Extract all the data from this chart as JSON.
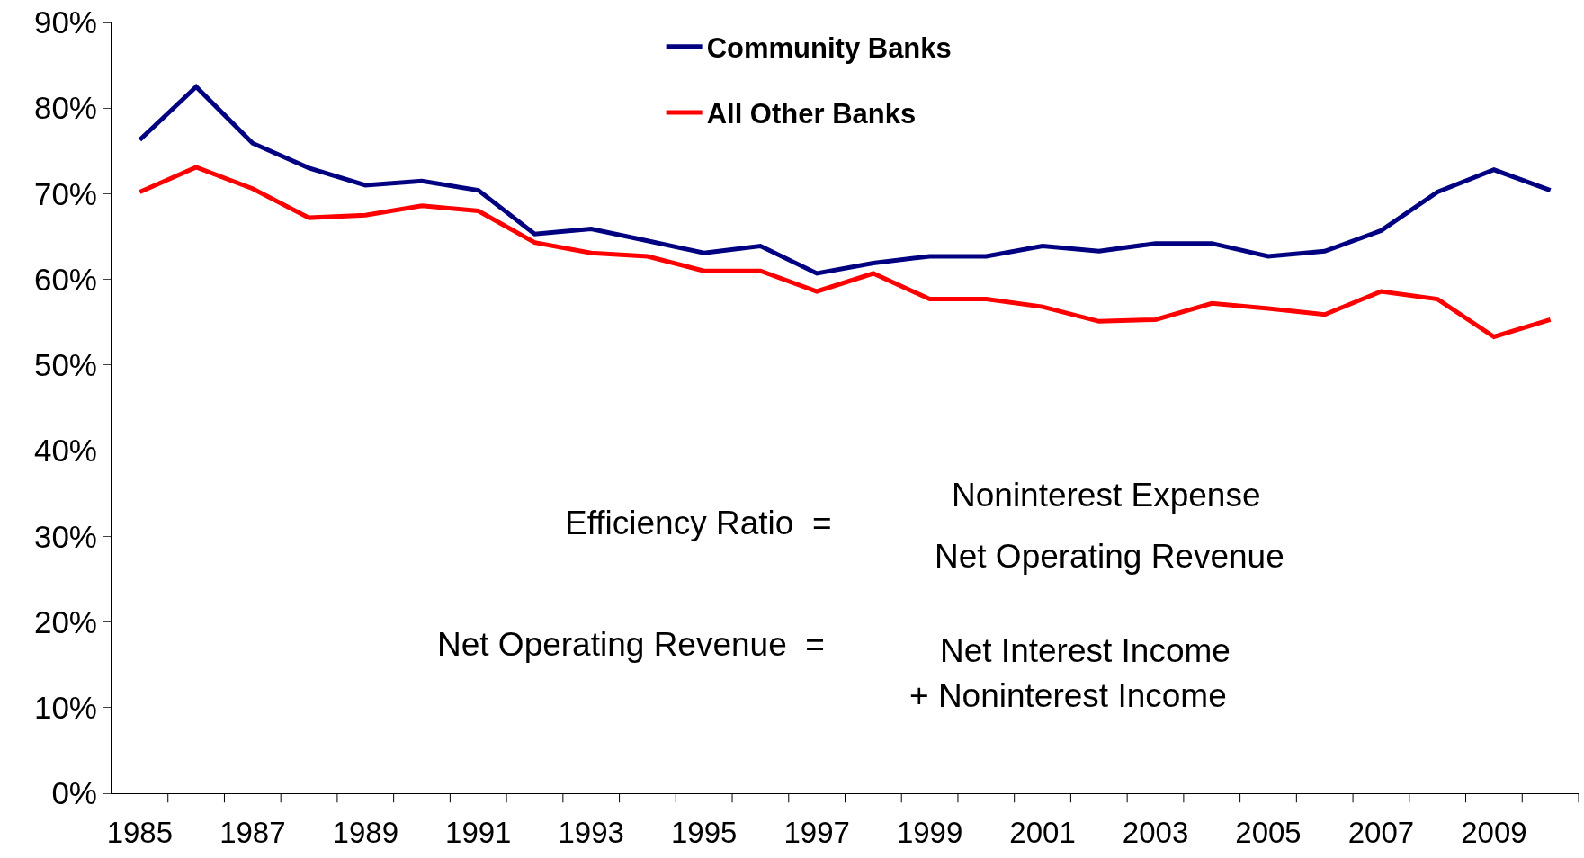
{
  "chart_data": {
    "type": "line",
    "categories": [
      "1985",
      null,
      "1987",
      null,
      "1989",
      null,
      "1991",
      null,
      "1993",
      null,
      "1995",
      null,
      "1997",
      null,
      "1999",
      null,
      "2001",
      null,
      "2003",
      null,
      "2005",
      null,
      "2007",
      null,
      "2009",
      null
    ],
    "series": [
      {
        "name": "Community Banks",
        "color": "#000080",
        "values": [
          76.3,
          82.5,
          75.9,
          73.0,
          71.0,
          71.5,
          70.4,
          65.3,
          65.9,
          64.5,
          63.1,
          63.9,
          60.7,
          61.9,
          62.7,
          62.7,
          63.9,
          63.3,
          64.2,
          64.2,
          62.7,
          63.3,
          65.7,
          70.2,
          72.8,
          70.4
        ]
      },
      {
        "name": "All Other Banks",
        "color": "#ff0000",
        "values": [
          70.2,
          73.1,
          70.6,
          67.2,
          67.5,
          68.6,
          68.0,
          64.3,
          63.1,
          62.7,
          61.0,
          61.0,
          58.6,
          60.7,
          57.7,
          57.7,
          56.8,
          55.1,
          55.3,
          57.2,
          56.6,
          55.9,
          58.6,
          57.7,
          53.3,
          55.3
        ]
      }
    ],
    "ylim": [
      0,
      90
    ],
    "yticks": [
      {
        "value": 0,
        "label": "0%"
      },
      {
        "value": 10,
        "label": "10%"
      },
      {
        "value": 20,
        "label": "20%"
      },
      {
        "value": 30,
        "label": "30%"
      },
      {
        "value": 40,
        "label": "40%"
      },
      {
        "value": 50,
        "label": "50%"
      },
      {
        "value": 60,
        "label": "60%"
      },
      {
        "value": 70,
        "label": "70%"
      },
      {
        "value": 80,
        "label": "80%"
      },
      {
        "value": 90,
        "label": "90%"
      }
    ],
    "annotations": [
      "Efficiency Ratio  =",
      "Noninterest Expense",
      "Net Operating Revenue",
      "Net Operating Revenue  =",
      "Net Interest Income",
      "+ Noninterest Income"
    ],
    "legend": "top",
    "marker": "none",
    "line_style": "solid"
  }
}
